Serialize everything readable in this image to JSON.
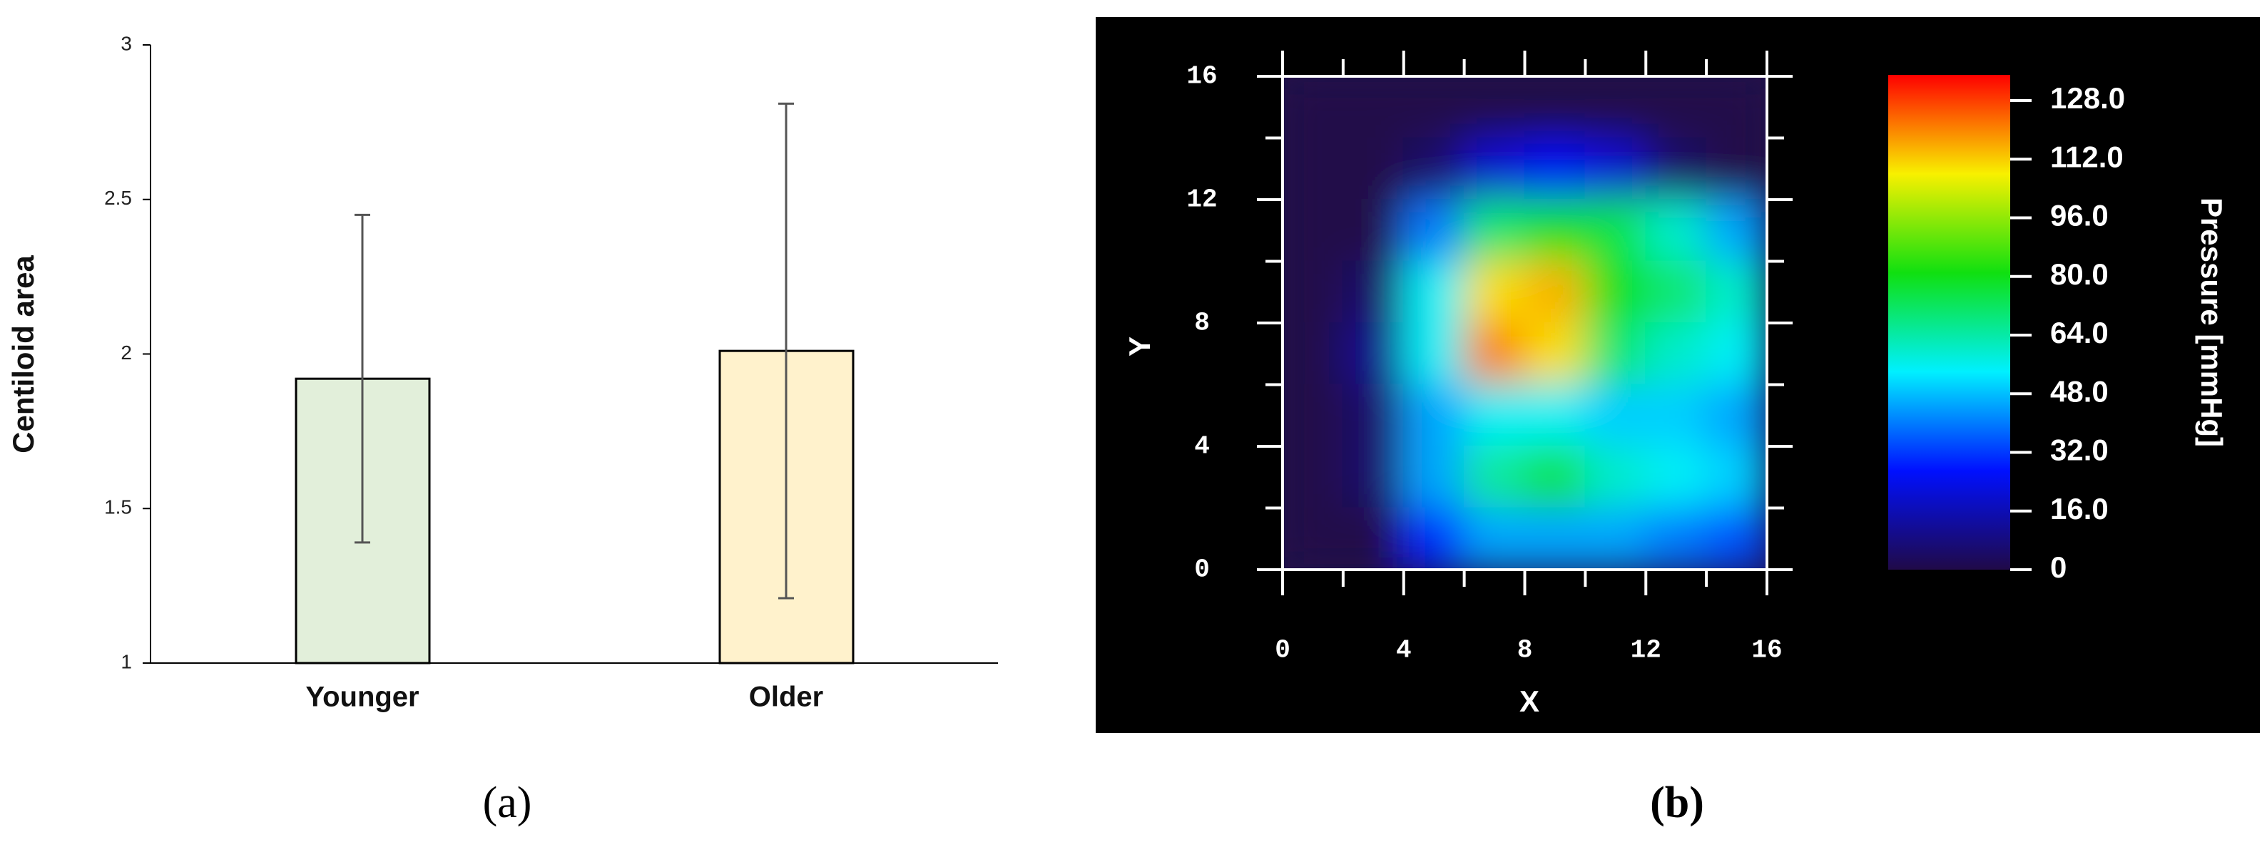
{
  "chart_data": [
    {
      "type": "bar",
      "y_label": "Centiloid area",
      "categories": [
        "Younger",
        "Older"
      ],
      "values": [
        1.92,
        2.01
      ],
      "errors": [
        0.53,
        0.8
      ],
      "colors": [
        "#e2efda",
        "#fff2cc"
      ],
      "ylim": [
        1,
        3
      ],
      "yticks": [
        1,
        1.5,
        2,
        2.5,
        3
      ],
      "caption": "(a)"
    },
    {
      "type": "heatmap",
      "x_label": "X",
      "y_label": "Y",
      "x": [
        1,
        3,
        5,
        7,
        9,
        11,
        13,
        15
      ],
      "y": [
        15,
        13,
        11,
        9,
        7,
        5,
        3,
        1
      ],
      "z": [
        [
          0,
          0,
          0,
          0,
          0,
          0,
          0,
          0
        ],
        [
          0,
          0,
          5,
          20,
          25,
          20,
          5,
          0
        ],
        [
          0,
          0,
          40,
          70,
          80,
          75,
          60,
          45
        ],
        [
          0,
          5,
          55,
          110,
          115,
          80,
          70,
          60
        ],
        [
          0,
          10,
          55,
          120,
          110,
          70,
          60,
          55
        ],
        [
          0,
          5,
          45,
          55,
          55,
          50,
          50,
          45
        ],
        [
          0,
          5,
          45,
          65,
          75,
          60,
          55,
          50
        ],
        [
          0,
          0,
          30,
          45,
          45,
          45,
          40,
          35
        ]
      ],
      "xlim": [
        0,
        16
      ],
      "ylim": [
        0,
        16
      ],
      "xticks": [
        0,
        4,
        8,
        12,
        16
      ],
      "yticks": [
        0,
        4,
        8,
        12,
        16
      ],
      "xminorticks": [
        2,
        6,
        10,
        14
      ],
      "yminorticks": [
        2,
        6,
        10,
        14
      ],
      "colorbar_label": "Pressure [mmHg]",
      "clim": [
        0,
        135
      ],
      "cticks": [
        0,
        {
          "value": 16,
          "label": "16.0"
        },
        {
          "value": 32,
          "label": "32.0"
        },
        {
          "value": 48,
          "label": "48.0"
        },
        {
          "value": 64,
          "label": "64.0"
        },
        {
          "value": 80,
          "label": "80.0"
        },
        {
          "value": 96,
          "label": "96.0"
        },
        {
          "value": 112,
          "label": "112.0"
        },
        {
          "value": 128,
          "label": "128.0"
        }
      ],
      "colormap": [
        "#200a48",
        "#0010ff",
        "#00f0ff",
        "#10e010",
        "#f8f000",
        "#ff0000"
      ],
      "caption": "(b)"
    }
  ]
}
